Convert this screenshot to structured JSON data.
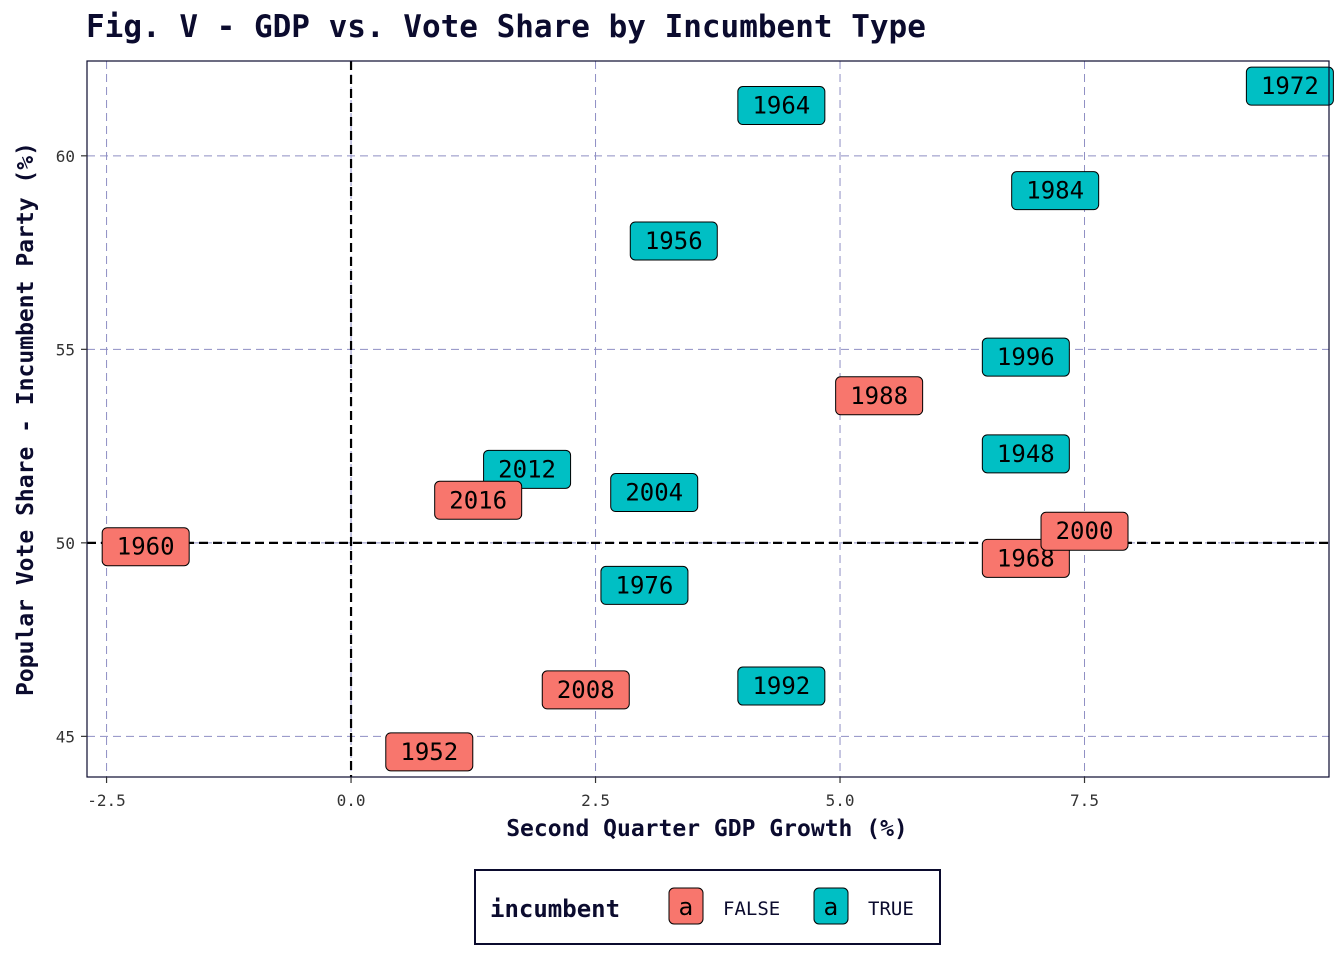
{
  "chart_data": {
    "type": "scatter",
    "title": "Fig. V - GDP vs. Vote Share by Incumbent Type",
    "xlabel": "Second Quarter GDP Growth (%)",
    "ylabel": "Popular Vote Share - Incumbent Party (%)",
    "xlim": [
      -2.7,
      10.0
    ],
    "ylim": [
      43.95,
      62.45
    ],
    "x_ticks": [
      -2.5,
      0.0,
      2.5,
      5.0,
      7.5
    ],
    "x_tick_labels": [
      "-2.5",
      "0.0",
      "2.5",
      "5.0",
      "7.5"
    ],
    "y_ticks": [
      45,
      50,
      55,
      60
    ],
    "y_tick_labels": [
      "45",
      "50",
      "55",
      "60"
    ],
    "reference_lines": {
      "x": 0,
      "y": 50
    },
    "grid": true,
    "legend": {
      "title": "incumbent",
      "position": "bottom",
      "key_glyph": "a",
      "entries": [
        {
          "label": "FALSE",
          "color": "#F8766D"
        },
        {
          "label": "TRUE",
          "color": "#00BFC4"
        }
      ]
    },
    "colors": {
      "FALSE": "#F8766D",
      "TRUE": "#00BFC4"
    },
    "points": [
      {
        "label": "1948",
        "x": 6.9,
        "y": 52.3,
        "incumbent": "TRUE"
      },
      {
        "label": "1952",
        "x": 0.8,
        "y": 44.6,
        "incumbent": "FALSE"
      },
      {
        "label": "1956",
        "x": 3.3,
        "y": 57.8,
        "incumbent": "TRUE"
      },
      {
        "label": "1960",
        "x": -2.1,
        "y": 49.9,
        "incumbent": "FALSE"
      },
      {
        "label": "1964",
        "x": 4.4,
        "y": 61.3,
        "incumbent": "TRUE"
      },
      {
        "label": "1968",
        "x": 6.9,
        "y": 49.6,
        "incumbent": "FALSE"
      },
      {
        "label": "1972",
        "x": 9.6,
        "y": 61.8,
        "incumbent": "TRUE"
      },
      {
        "label": "1976",
        "x": 3.0,
        "y": 48.9,
        "incumbent": "TRUE"
      },
      {
        "label": "1984",
        "x": 7.2,
        "y": 59.1,
        "incumbent": "TRUE"
      },
      {
        "label": "1988",
        "x": 5.4,
        "y": 53.8,
        "incumbent": "FALSE"
      },
      {
        "label": "1992",
        "x": 4.4,
        "y": 46.3,
        "incumbent": "TRUE"
      },
      {
        "label": "1996",
        "x": 6.9,
        "y": 54.8,
        "incumbent": "TRUE"
      },
      {
        "label": "2000",
        "x": 7.5,
        "y": 50.3,
        "incumbent": "FALSE"
      },
      {
        "label": "2004",
        "x": 3.1,
        "y": 51.3,
        "incumbent": "TRUE"
      },
      {
        "label": "2008",
        "x": 2.4,
        "y": 46.2,
        "incumbent": "FALSE"
      },
      {
        "label": "2012",
        "x": 1.8,
        "y": 51.9,
        "incumbent": "TRUE"
      },
      {
        "label": "2016",
        "x": 1.3,
        "y": 51.1,
        "incumbent": "FALSE"
      }
    ]
  }
}
